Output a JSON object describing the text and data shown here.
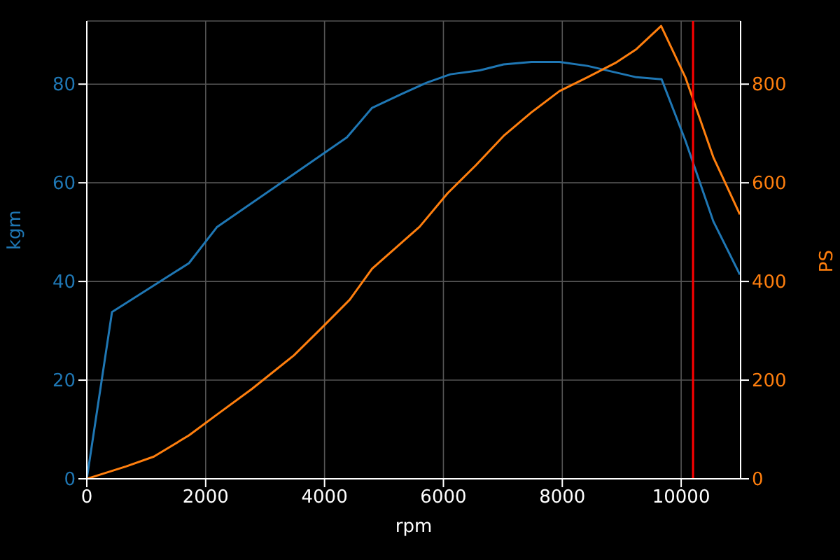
{
  "chart_data": {
    "type": "line",
    "xlabel": "rpm",
    "ylabel": "kgm",
    "y2label": "PS",
    "xlim": [
      0,
      11000
    ],
    "xticks": [
      0,
      2000,
      4000,
      6000,
      8000,
      10000
    ],
    "ylim": [
      0,
      92.8
    ],
    "yticks": [
      0,
      20,
      40,
      60,
      80
    ],
    "y2lim": [
      0,
      928
    ],
    "y2ticks": [
      0,
      200,
      400,
      600,
      800
    ],
    "grid": true,
    "ref_lines": [
      {
        "axis": "x",
        "value": 10200,
        "color": "#ff0000"
      }
    ],
    "series": [
      {
        "color": "#1f77b4",
        "x": [
          0,
          424,
          1718,
          2188,
          4376,
          4800,
          5294,
          5718,
          6118,
          6612,
          7012,
          7482,
          7953,
          8424,
          9247,
          9670,
          10070,
          10541,
          10988
        ],
        "values": [
          0,
          33.8,
          43.7,
          51,
          69.2,
          75.2,
          78,
          80.3,
          82,
          82.8,
          84,
          84.5,
          84.5,
          83.7,
          81.4,
          81,
          68.6,
          52.2,
          41.4
        ]
      },
      {
        "axis": "y2",
        "color": "#ff7f0e",
        "x": [
          0,
          659,
          1129,
          1718,
          2188,
          2776,
          3482,
          3953,
          4424,
          4800,
          5600,
          6071,
          6541,
          7012,
          7482,
          7953,
          8424,
          8894,
          9247,
          9663,
          10070,
          10541,
          10988
        ],
        "values": [
          0,
          25,
          45,
          88,
          130,
          182,
          250,
          306,
          363,
          426,
          511,
          579,
          635,
          695,
          743,
          786,
          814,
          843,
          871,
          918,
          814,
          652,
          536
        ]
      }
    ]
  }
}
